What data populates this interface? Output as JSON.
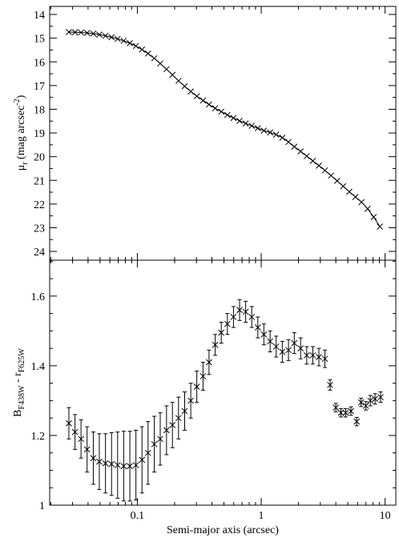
{
  "chart_data": [
    {
      "type": "scatter",
      "ylabel": {
        "main": "μ",
        "sub": "r",
        "rest": " (mag arcsec",
        "sup": "-2",
        "end": ")"
      },
      "xlog": true,
      "y_inverted": true,
      "color": "#000000",
      "xlim": [
        0.0196,
        12.2
      ],
      "xticks": [
        0.1,
        1,
        10
      ],
      "xminorticks": [
        0.02,
        0.03,
        0.04,
        0.05,
        0.06,
        0.07,
        0.08,
        0.09,
        0.2,
        0.3,
        0.4,
        0.5,
        0.6,
        0.7,
        0.8,
        0.9,
        2,
        3,
        4,
        5,
        6,
        7,
        8,
        9
      ],
      "ylim": [
        13.66,
        24.37
      ],
      "yticks": [
        14,
        15,
        16,
        17,
        18,
        19,
        20,
        21,
        22,
        23,
        24
      ],
      "yminorticks": [
        14.5,
        15.5,
        16.5,
        17.5,
        18.5,
        19.5,
        20.5,
        21.5,
        22.5,
        23.5
      ],
      "x": [
        0.028,
        0.0314,
        0.0351,
        0.0393,
        0.0441,
        0.0493,
        0.0553,
        0.0619,
        0.0693,
        0.0776,
        0.087,
        0.0974,
        0.109,
        0.122,
        0.137,
        0.153,
        0.172,
        0.192,
        0.215,
        0.241,
        0.27,
        0.302,
        0.339,
        0.379,
        0.425,
        0.476,
        0.533,
        0.597,
        0.669,
        0.749,
        0.839,
        0.939,
        1.05,
        1.18,
        1.32,
        1.48,
        1.66,
        1.85,
        2.08,
        2.33,
        2.61,
        2.92,
        3.27,
        3.66,
        4.1,
        4.59,
        5.14,
        5.76,
        6.45,
        7.23,
        8.09,
        9.07
      ],
      "values": [
        14.74,
        14.75,
        14.76,
        14.78,
        14.81,
        14.85,
        14.9,
        14.96,
        15.03,
        15.11,
        15.21,
        15.33,
        15.48,
        15.65,
        15.85,
        16.07,
        16.31,
        16.55,
        16.8,
        17.03,
        17.25,
        17.45,
        17.63,
        17.8,
        17.96,
        18.1,
        18.24,
        18.37,
        18.49,
        18.6,
        18.7,
        18.8,
        18.9,
        18.98,
        19.07,
        19.2,
        19.38,
        19.58,
        19.78,
        19.98,
        20.18,
        20.38,
        20.58,
        20.8,
        21.02,
        21.25,
        21.48,
        21.7,
        21.92,
        22.2,
        22.55,
        22.95
      ]
    },
    {
      "type": "errorbar",
      "xlabel": "Semi-major axis (arcsec)",
      "ylabel": {
        "main": "B",
        "sub": "F438W",
        "rest": " - r",
        "sub2": "F625W"
      },
      "xlog": true,
      "y_inverted": false,
      "color": "#000000",
      "xlim": [
        0.0196,
        12.2
      ],
      "xticks": [
        0.1,
        1,
        10
      ],
      "xminorticks": [
        0.02,
        0.03,
        0.04,
        0.05,
        0.06,
        0.07,
        0.08,
        0.09,
        0.2,
        0.3,
        0.4,
        0.5,
        0.6,
        0.7,
        0.8,
        0.9,
        2,
        3,
        4,
        5,
        6,
        7,
        8,
        9
      ],
      "ylim": [
        1,
        1.703
      ],
      "yticks": [
        1,
        1.2,
        1.4,
        1.6
      ],
      "yminorticks": [
        1.05,
        1.1,
        1.15,
        1.25,
        1.3,
        1.35,
        1.45,
        1.5,
        1.55,
        1.65,
        1.7
      ],
      "x": [
        0.028,
        0.0314,
        0.0351,
        0.0393,
        0.0441,
        0.0493,
        0.0553,
        0.0619,
        0.0693,
        0.0776,
        0.087,
        0.0974,
        0.109,
        0.122,
        0.137,
        0.153,
        0.172,
        0.192,
        0.215,
        0.241,
        0.27,
        0.302,
        0.339,
        0.379,
        0.425,
        0.476,
        0.533,
        0.597,
        0.669,
        0.749,
        0.839,
        0.939,
        1.05,
        1.18,
        1.32,
        1.48,
        1.66,
        1.85,
        2.08,
        2.33,
        2.61,
        2.92,
        3.27,
        3.6,
        4.0,
        4.4,
        4.8,
        5.3,
        5.9,
        6.4,
        7.0,
        7.6,
        8.3,
        9.2
      ],
      "values": [
        1.235,
        1.21,
        1.19,
        1.16,
        1.135,
        1.125,
        1.12,
        1.118,
        1.115,
        1.112,
        1.112,
        1.115,
        1.13,
        1.15,
        1.175,
        1.19,
        1.215,
        1.23,
        1.25,
        1.27,
        1.3,
        1.34,
        1.37,
        1.41,
        1.46,
        1.495,
        1.52,
        1.54,
        1.56,
        1.555,
        1.54,
        1.51,
        1.49,
        1.47,
        1.455,
        1.44,
        1.445,
        1.465,
        1.45,
        1.43,
        1.43,
        1.425,
        1.42,
        1.345,
        1.28,
        1.265,
        1.265,
        1.27,
        1.24,
        1.295,
        1.285,
        1.3,
        1.305,
        1.31
      ],
      "errors": [
        0.045,
        0.05,
        0.055,
        0.065,
        0.075,
        0.08,
        0.085,
        0.09,
        0.095,
        0.1,
        0.1,
        0.1,
        0.095,
        0.09,
        0.08,
        0.075,
        0.07,
        0.065,
        0.06,
        0.055,
        0.05,
        0.045,
        0.04,
        0.035,
        0.03,
        0.03,
        0.03,
        0.03,
        0.03,
        0.03,
        0.03,
        0.03,
        0.03,
        0.03,
        0.03,
        0.03,
        0.03,
        0.03,
        0.03,
        0.025,
        0.025,
        0.025,
        0.025,
        0.015,
        0.012,
        0.012,
        0.012,
        0.012,
        0.012,
        0.012,
        0.012,
        0.015,
        0.015,
        0.015
      ]
    }
  ]
}
